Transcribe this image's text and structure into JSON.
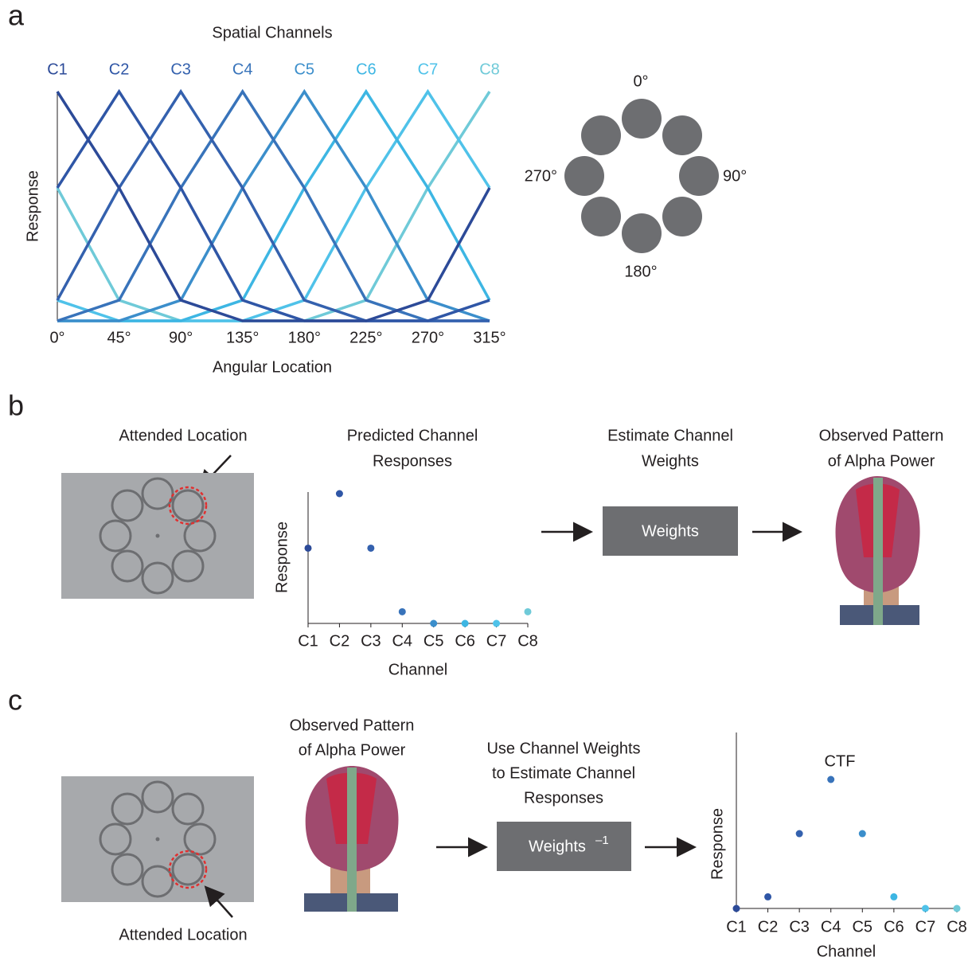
{
  "panels": {
    "a": {
      "label": "a",
      "wheel_labels": [
        "0°",
        "90°",
        "180°",
        "270°"
      ]
    },
    "b": {
      "label": "b",
      "attended": "Attended Location",
      "estimate": [
        "Estimate Channel",
        "Weights"
      ],
      "box": "Weights",
      "observed": [
        "Observed Pattern",
        "of Alpha Power"
      ]
    },
    "c": {
      "label": "c",
      "observed": [
        "Observed Pattern",
        "of Alpha Power"
      ],
      "use": [
        "Use Channel Weights",
        "to Estimate Channel",
        "Responses"
      ],
      "box": "Weights",
      "box_sup": "–1",
      "attended": "Attended Location"
    }
  },
  "chart_data": [
    {
      "type": "line",
      "title": "Spatial Channels",
      "x_label": "Angular Location",
      "y_label": "Response",
      "x": [
        0,
        45,
        90,
        135,
        180,
        225,
        270,
        315
      ],
      "xlim": [
        0,
        315
      ],
      "ylim": [
        0,
        1
      ],
      "xticks": [
        {
          "value": 0,
          "label": "0°"
        },
        {
          "value": 45,
          "label": "45°"
        },
        {
          "value": 90,
          "label": "90°"
        },
        {
          "value": 135,
          "label": "135°"
        },
        {
          "value": 180,
          "label": "180°"
        },
        {
          "value": 225,
          "label": "225°"
        },
        {
          "value": 270,
          "label": "270°"
        },
        {
          "value": 315,
          "label": "315°"
        }
      ],
      "series": [
        {
          "name": "C1",
          "color": "#2c4a98",
          "values": [
            1,
            0.58,
            0.09,
            0,
            0,
            0,
            0.09,
            0.58
          ]
        },
        {
          "name": "C2",
          "color": "#2f56a6",
          "values": [
            0.58,
            1,
            0.58,
            0.09,
            0,
            0,
            0,
            0.09
          ]
        },
        {
          "name": "C3",
          "color": "#3461ae",
          "values": [
            0.09,
            0.58,
            1,
            0.58,
            0.09,
            0,
            0,
            0
          ]
        },
        {
          "name": "C4",
          "color": "#3873ba",
          "values": [
            0,
            0.09,
            0.58,
            1,
            0.58,
            0.09,
            0,
            0
          ]
        },
        {
          "name": "C5",
          "color": "#3b8ecb",
          "values": [
            0,
            0,
            0.09,
            0.58,
            1,
            0.58,
            0.09,
            0
          ]
        },
        {
          "name": "C6",
          "color": "#3db6e3",
          "values": [
            0,
            0,
            0,
            0.09,
            0.58,
            1,
            0.58,
            0.09
          ]
        },
        {
          "name": "C7",
          "color": "#4fc2e9",
          "values": [
            0.09,
            0,
            0,
            0,
            0.09,
            0.58,
            1,
            0.58
          ]
        },
        {
          "name": "C8",
          "color": "#6fcad8",
          "values": [
            0.58,
            0.09,
            0,
            0,
            0,
            0.09,
            0.58,
            1
          ]
        }
      ]
    },
    {
      "type": "scatter",
      "title": [
        "Predicted Channel",
        "Responses"
      ],
      "x_label": "Channel",
      "y_label": "Response",
      "categories": [
        "C1",
        "C2",
        "C3",
        "C4",
        "C5",
        "C6",
        "C7",
        "C8"
      ],
      "values": [
        0.58,
        1,
        0.58,
        0.09,
        0,
        0,
        0,
        0.09
      ],
      "ylim": [
        0,
        1
      ],
      "colors": [
        "#2c4a98",
        "#2f56a6",
        "#3461ae",
        "#3873ba",
        "#3b8ecb",
        "#3db6e3",
        "#4fc2e9",
        "#6fcad8"
      ]
    },
    {
      "type": "scatter",
      "title": "CTF",
      "x_label": "Channel",
      "y_label": "Response",
      "categories": [
        "C1",
        "C2",
        "C3",
        "C4",
        "C5",
        "C6",
        "C7",
        "C8"
      ],
      "values": [
        0,
        0.09,
        0.58,
        1,
        0.58,
        0.09,
        0,
        0
      ],
      "ylim": [
        0,
        1
      ],
      "colors": [
        "#2c4a98",
        "#2f56a6",
        "#3461ae",
        "#3873ba",
        "#3b8ecb",
        "#3db6e3",
        "#4fc2e9",
        "#6fcad8"
      ]
    }
  ]
}
